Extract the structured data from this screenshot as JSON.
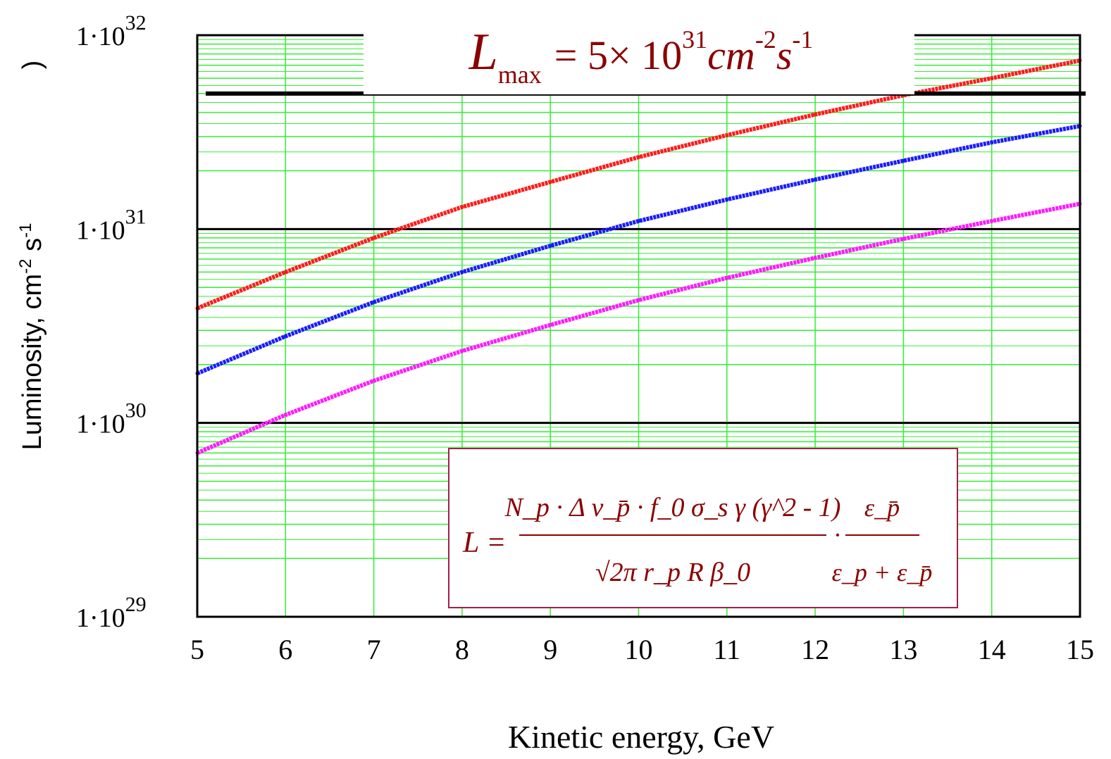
{
  "chart_data": {
    "type": "line",
    "title": {
      "symbol": "L",
      "subscript": "max",
      "text": "= 5× 10",
      "exponent": "31",
      "unit1": "cm",
      "unit1_exp": "-2",
      "unit2": "s",
      "unit2_exp": "-1"
    },
    "xlabel": "Kinetic energy, GeV",
    "ylabel": {
      "text": "Luminosity, cm",
      "exp1": "-2",
      "mid": " s",
      "exp2": "-1",
      "bracket": ")"
    },
    "xlim": [
      5,
      15
    ],
    "ylim": [
      1e+29,
      1e+32
    ],
    "yscale": "log",
    "x_ticks": [
      "5",
      "6",
      "7",
      "8",
      "9",
      "10",
      "11",
      "12",
      "13",
      "14",
      "15"
    ],
    "y_ticks": [
      {
        "base": "1·10",
        "exp": "29",
        "value": 1e+29
      },
      {
        "base": "1·10",
        "exp": "30",
        "value": 1e+30
      },
      {
        "base": "1·10",
        "exp": "31",
        "value": 1e+31
      },
      {
        "base": "1·10",
        "exp": "32",
        "value": 1e+32
      }
    ],
    "grid": true,
    "reference_line": {
      "value": 5e+31
    },
    "x": [
      5,
      6,
      7,
      8,
      9,
      10,
      11,
      12,
      13,
      14,
      15
    ],
    "series": [
      {
        "color": "#ff1a1a",
        "values": [
          3.9e+30,
          6e+30,
          9e+30,
          1.3e+31,
          1.75e+31,
          2.35e+31,
          3.05e+31,
          3.9e+31,
          4.9e+31,
          6e+31,
          7.4e+31
        ]
      },
      {
        "color": "#1a1aff",
        "values": [
          1.8e+30,
          2.8e+30,
          4.2e+30,
          6e+30,
          8.2e+30,
          1.1e+31,
          1.42e+31,
          1.8e+31,
          2.25e+31,
          2.8e+31,
          3.4e+31
        ]
      },
      {
        "color": "#ff1aff",
        "values": [
          7e+29,
          1.1e+30,
          1.65e+30,
          2.35e+30,
          3.2e+30,
          4.3e+30,
          5.6e+30,
          7.1e+30,
          8.9e+30,
          1.1e+31,
          1.35e+31
        ]
      }
    ]
  },
  "formula": {
    "lhs": "L =",
    "numerator": "N_p · Δ ν_p̄ · f_0 σ_s γ (γ^2 - 1)",
    "denominator": "√2π r_p R β_0",
    "dot": "·",
    "eps_num": "ε_p̄",
    "eps_den": "ε_p + ε_p̄"
  },
  "colors": {
    "grid": "#33ee33",
    "axis": "#000000",
    "text_accent": "#8b0000",
    "formula_border": "#a0204a"
  }
}
